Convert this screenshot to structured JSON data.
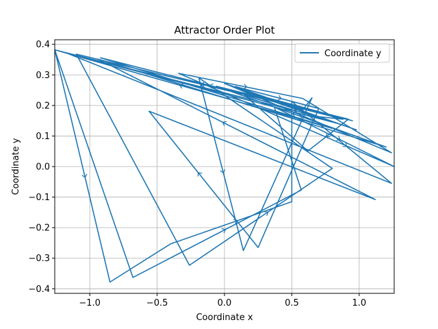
{
  "chart_data": {
    "type": "line",
    "title": "Attractor Order Plot",
    "xlabel": "Coordinate x",
    "ylabel": "Coordinate y",
    "xlim": [
      -1.26,
      1.26
    ],
    "ylim": [
      -0.415,
      0.415
    ],
    "xticks": [
      -1.0,
      -0.5,
      0.0,
      0.5,
      1.0
    ],
    "xtick_labels": [
      "−1.0",
      "−0.5",
      "0.0",
      "0.5",
      "1.0"
    ],
    "yticks": [
      -0.4,
      -0.3,
      -0.2,
      -0.1,
      0.0,
      0.1,
      0.2,
      0.3,
      0.4
    ],
    "ytick_labels": [
      "−0.4",
      "−0.3",
      "−0.2",
      "−0.1",
      "0.0",
      "0.1",
      "0.2",
      "0.3",
      "0.4"
    ],
    "grid": true,
    "legend_position": "top-right",
    "series": [
      {
        "name": "Coordinate y",
        "color": "#1f77b4",
        "points": [
          [
            -1.26,
            0.382
          ],
          [
            -0.85,
            -0.378
          ],
          [
            -0.4,
            -0.253
          ],
          [
            0.5,
            -0.115
          ],
          [
            0.5,
            0.213
          ],
          [
            1.24,
            -0.055
          ],
          [
            -1.18,
            0.373
          ],
          [
            0.7,
            0.163
          ],
          [
            0.88,
            0.155
          ],
          [
            -0.92,
            0.356
          ],
          [
            0.8,
            0.125
          ],
          [
            -1.26,
            0.382
          ],
          [
            -0.68,
            -0.363
          ],
          [
            0.57,
            -0.077
          ],
          [
            0.37,
            0.195
          ],
          [
            1.26,
            0.0
          ],
          [
            -0.34,
            0.305
          ],
          [
            0.58,
            0.223
          ],
          [
            1.24,
            0.045
          ],
          [
            0.0,
            0.272
          ],
          [
            0.98,
            0.12
          ],
          [
            0.14,
            0.246
          ],
          [
            0.95,
            0.15
          ],
          [
            -1.1,
            0.368
          ],
          [
            -0.26,
            -0.323
          ],
          [
            0.8,
            -0.006
          ],
          [
            -0.19,
            0.29
          ],
          [
            0.14,
            -0.275
          ],
          [
            0.65,
            0.225
          ],
          [
            0.58,
            0.185
          ],
          [
            0.08,
            0.262
          ],
          [
            0.7,
            0.19
          ],
          [
            0.25,
            -0.265
          ],
          [
            -0.56,
            0.181
          ],
          [
            1.12,
            -0.108
          ],
          [
            -0.94,
            0.352
          ],
          [
            1.2,
            0.064
          ],
          [
            -0.06,
            0.263
          ],
          [
            0.92,
            0.155
          ],
          [
            0.62,
            0.051
          ],
          [
            0.15,
            0.233
          ],
          [
            0.85,
            0.14
          ],
          [
            -1.26,
            0.382
          ]
        ]
      }
    ]
  }
}
